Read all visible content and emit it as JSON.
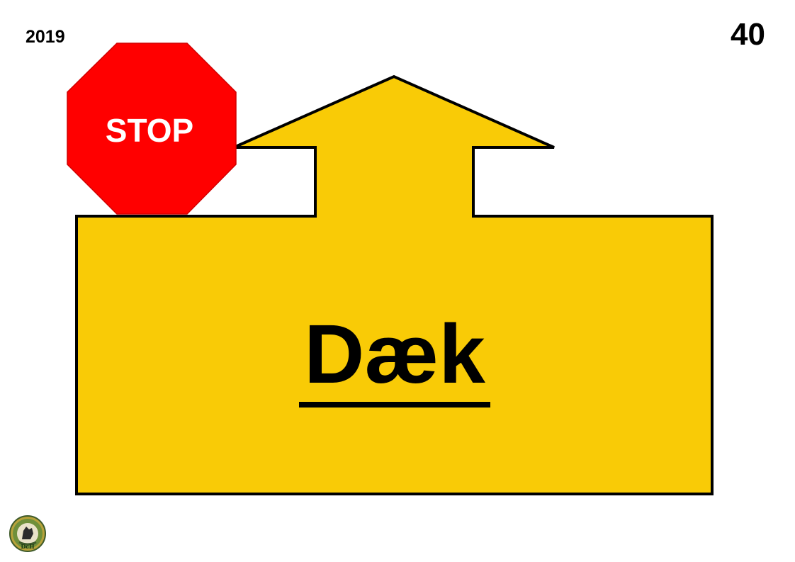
{
  "card": {
    "year": "2019",
    "number": "40",
    "stop_label": "STOP",
    "exercise_label": "Dæk",
    "logo_text": "DcH"
  },
  "colors": {
    "arrow_fill": "#F9CB06",
    "stop_fill": "#FF0000",
    "stop_text": "#FFFFFF",
    "outline": "#000000"
  },
  "icons": {
    "stop": "stop-sign-icon",
    "direction": "arrow-up-icon",
    "logo": "dch-logo-icon"
  }
}
